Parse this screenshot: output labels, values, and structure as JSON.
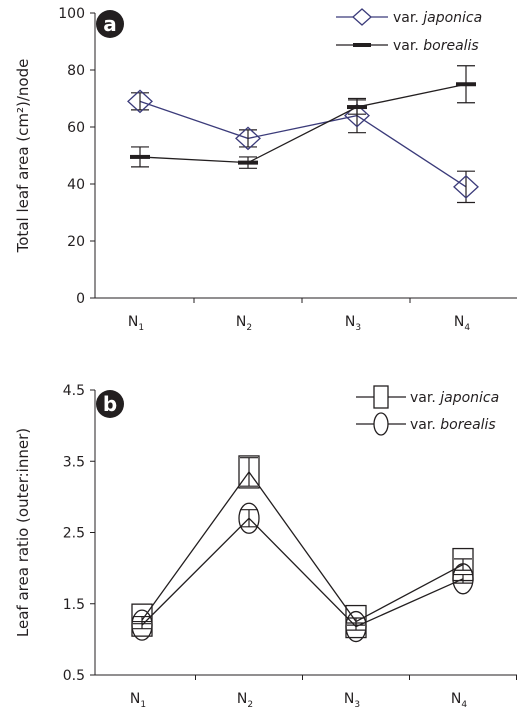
{
  "chart_data": [
    {
      "panel_label": "a",
      "type": "line",
      "categories": [
        "N1",
        "N2",
        "N3",
        "N4"
      ],
      "category_labels": [
        {
          "base": "N",
          "sub": "1"
        },
        {
          "base": "N",
          "sub": "2"
        },
        {
          "base": "N",
          "sub": "3"
        },
        {
          "base": "N",
          "sub": "4"
        }
      ],
      "ylabel": "Total leaf area (cm²)/node",
      "ylim": [
        0,
        100
      ],
      "yticks": [
        "0",
        "20",
        "40",
        "60",
        "80",
        "100"
      ],
      "legend_position": "top-right",
      "series": [
        {
          "name_prefix": "var. ",
          "name": "japonica",
          "color": "#3b3b7a",
          "marker": "diamond",
          "values": [
            69,
            56,
            64,
            39
          ],
          "errors": [
            3,
            3,
            6,
            5.5
          ]
        },
        {
          "name_prefix": "var. ",
          "name": "borealis",
          "color": "#231f20",
          "marker": "dash",
          "values": [
            49.5,
            47.5,
            67,
            75
          ],
          "errors": [
            3.5,
            2,
            2.5,
            6.5
          ]
        }
      ]
    },
    {
      "panel_label": "b",
      "type": "line",
      "categories": [
        "N1",
        "N2",
        "N3",
        "N4"
      ],
      "category_labels": [
        {
          "base": "N",
          "sub": "1"
        },
        {
          "base": "N",
          "sub": "2"
        },
        {
          "base": "N",
          "sub": "3"
        },
        {
          "base": "N",
          "sub": "4"
        }
      ],
      "ylabel": "Leaf area ratio (outer:inner)",
      "ylim": [
        0.5,
        4.5
      ],
      "yticks": [
        "0.5",
        "1.5",
        "2.5",
        "3.5",
        "4.5"
      ],
      "legend_position": "top-right",
      "series": [
        {
          "name_prefix": "var. ",
          "name": "japonica",
          "color": "#231f20",
          "marker": "square",
          "values": [
            1.27,
            3.35,
            1.25,
            2.05
          ],
          "errors": [
            0.05,
            0.2,
            0.05,
            0.08
          ]
        },
        {
          "name_prefix": "var. ",
          "name": "borealis",
          "color": "#231f20",
          "marker": "ellipse",
          "values": [
            1.2,
            2.7,
            1.18,
            1.85
          ],
          "errors": [
            0.05,
            0.12,
            0.05,
            0.06
          ]
        }
      ]
    }
  ]
}
